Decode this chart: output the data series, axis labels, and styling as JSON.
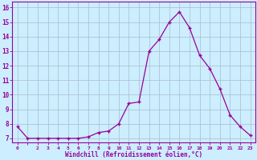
{
  "x": [
    0,
    1,
    2,
    3,
    4,
    5,
    6,
    7,
    8,
    9,
    10,
    11,
    12,
    13,
    14,
    15,
    16,
    17,
    18,
    19,
    20,
    21,
    22,
    23
  ],
  "y": [
    7.8,
    7.0,
    7.0,
    7.0,
    7.0,
    7.0,
    7.0,
    7.1,
    7.4,
    7.5,
    8.0,
    9.4,
    9.5,
    13.0,
    13.8,
    15.0,
    15.7,
    14.6,
    12.7,
    11.8,
    10.4,
    8.6,
    7.8,
    7.2
  ],
  "line_color": "#990099",
  "marker": "+",
  "bg_color": "#cceeff",
  "grid_color": "#aabbcc",
  "xlabel": "Windchill (Refroidissement éolien,°C)",
  "yticks": [
    7,
    8,
    9,
    10,
    11,
    12,
    13,
    14,
    15,
    16
  ],
  "xtick_labels": [
    "0",
    "",
    "2",
    "3",
    "4",
    "5",
    "6",
    "7",
    "8",
    "9",
    "10",
    "11",
    "12",
    "13",
    "14",
    "15",
    "16",
    "17",
    "18",
    "19",
    "20",
    "21",
    "22",
    "23"
  ],
  "ylim": [
    6.7,
    16.4
  ],
  "xlim": [
    -0.5,
    23.5
  ],
  "xlabel_color": "#990099",
  "tick_color": "#990099",
  "spine_color": "#990099"
}
